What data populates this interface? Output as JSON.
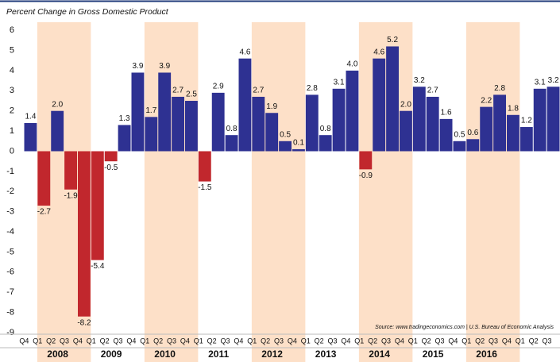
{
  "chart_data": {
    "type": "bar",
    "title": "Percent Change in Gross Domestic Product",
    "source": "Source: www.tradingeconomics.com | U.S. Bureau of Economic Analysis",
    "categories": [
      "Q4",
      "Q1",
      "Q2",
      "Q3",
      "Q4",
      "Q1",
      "Q2",
      "Q3",
      "Q4",
      "Q1",
      "Q2",
      "Q3",
      "Q4",
      "Q1",
      "Q2",
      "Q3",
      "Q4",
      "Q1",
      "Q2",
      "Q3",
      "Q4",
      "Q1",
      "Q2",
      "Q3",
      "Q4",
      "Q1",
      "Q2",
      "Q3",
      "Q4",
      "Q1",
      "Q2",
      "Q3",
      "Q4",
      "Q1",
      "Q2",
      "Q3",
      "Q4",
      "Q1",
      "Q2",
      "Q3"
    ],
    "years": [
      "2008",
      "2009",
      "2010",
      "2011",
      "2012",
      "2013",
      "2014",
      "2015",
      "2016"
    ],
    "values": [
      1.4,
      -2.7,
      2.0,
      -1.9,
      -8.2,
      -5.4,
      -0.5,
      1.3,
      3.9,
      1.7,
      3.9,
      2.7,
      2.5,
      -1.5,
      2.9,
      0.8,
      4.6,
      2.7,
      1.9,
      0.5,
      0.1,
      2.8,
      0.8,
      3.1,
      4.0,
      -0.9,
      4.6,
      5.2,
      2.0,
      3.2,
      2.7,
      1.6,
      0.5,
      0.6,
      2.2,
      2.8,
      1.8,
      1.2,
      3.1,
      3.2
    ],
    "value_labels": [
      "1.4",
      "-2.7",
      "2.0",
      "-1.9",
      "-8.2",
      "-5.4",
      "-0.5",
      "1.3",
      "3.9",
      "1.7",
      "3.9",
      "2.7",
      "2.5",
      "-1.5",
      "2.9",
      "0.8",
      "4.6",
      "2.7",
      "1.9",
      "0.5",
      "0.1",
      "2.8",
      "0.8",
      "3.1",
      "4.0",
      "-0.9",
      "4.6",
      "5.2",
      "2.0",
      "3.2",
      "2.7",
      "1.6",
      "0.5",
      "0.6",
      "2.2",
      "2.8",
      "1.8",
      "1.2",
      "3.1",
      "3.2"
    ],
    "positive_color": "#2e3192",
    "negative_color": "#c1272d",
    "shade_color": "#fde0c8",
    "ylim": [
      -9,
      6.4
    ],
    "yticks": [
      -9,
      -8,
      -7,
      -6,
      -5,
      -4,
      -3,
      -2,
      -1,
      0,
      1,
      2,
      3,
      4,
      5,
      6
    ]
  }
}
